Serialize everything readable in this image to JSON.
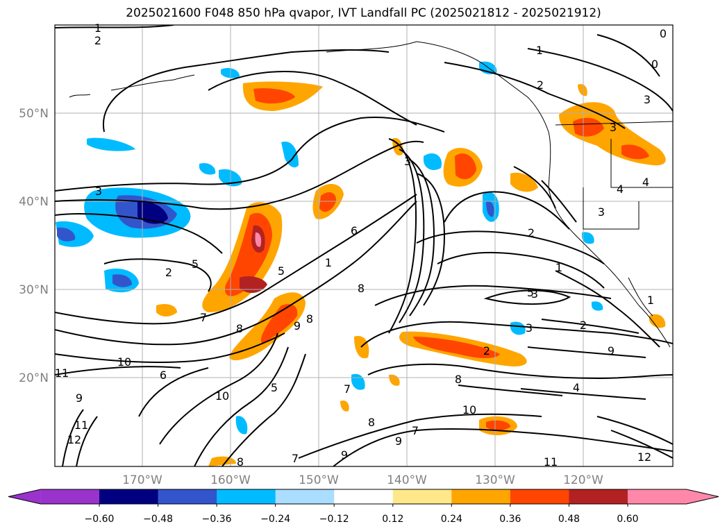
{
  "title": "2025021600 F048 850 hPa qvapor, IVT Landfall PC (2025021812 - 2025021912)",
  "map": {
    "lon_ticks": [
      "170°W",
      "160°W",
      "150°W",
      "140°W",
      "130°W",
      "120°W"
    ],
    "lat_ticks": [
      "50°N",
      "40°N",
      "30°N",
      "20°N"
    ],
    "grid": true,
    "contour_labels": [
      "1",
      "2",
      "0",
      "0",
      "1",
      "2",
      "3",
      "3",
      "4",
      "4",
      "3",
      "2",
      "1",
      "3",
      "5",
      "3",
      "2",
      "3",
      "2",
      "6",
      "8",
      "1",
      "7",
      "8",
      "5",
      "8",
      "9",
      "10",
      "11",
      "9",
      "12",
      "11",
      "10",
      "5",
      "7",
      "8",
      "9",
      "7",
      "10",
      "9",
      "8",
      "8",
      "7",
      "6",
      "9",
      "4",
      "2",
      "1",
      "11",
      "12",
      "3",
      "5"
    ]
  },
  "colorbar": {
    "ticks": [
      "−0.60",
      "−0.48",
      "−0.36",
      "−0.24",
      "−0.12",
      "0.12",
      "0.24",
      "0.36",
      "0.48",
      "0.60"
    ],
    "colors": [
      "#9933cc",
      "#000080",
      "#3355cc",
      "#00bbff",
      "#aaddff",
      "#ffffff",
      "#ffe88a",
      "#ffa500",
      "#ff4500",
      "#b22222",
      "#ff88aa",
      "#ff88aa"
    ],
    "extend": "both"
  }
}
